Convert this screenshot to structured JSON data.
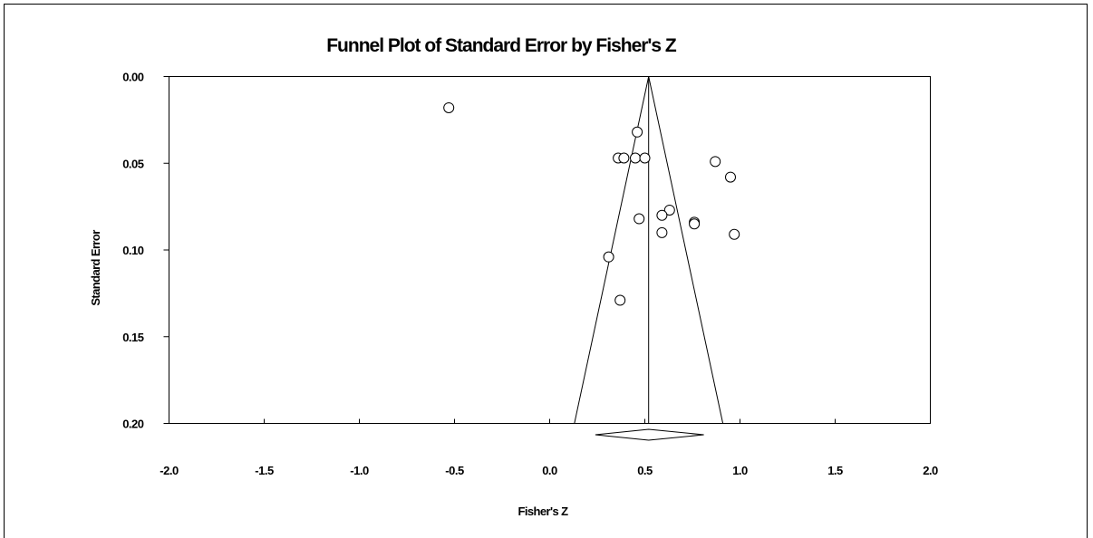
{
  "chart_data": {
    "type": "scatter",
    "title": "Funnel Plot of Standard Error by Fisher's Z",
    "xlabel": "Fisher's Z",
    "ylabel": "Standard Error",
    "xlim": [
      -2.0,
      2.0
    ],
    "ylim": [
      0.0,
      0.2
    ],
    "y_inverted": true,
    "x_ticks": [
      "-2.0",
      "-1.5",
      "-1.0",
      "-0.5",
      "0.0",
      "0.5",
      "1.0",
      "1.5",
      "2.0"
    ],
    "y_ticks": [
      "0.00",
      "0.05",
      "0.10",
      "0.15",
      "0.20"
    ],
    "combined_effect": 0.52,
    "combined_effect_ci": [
      0.24,
      0.81
    ],
    "funnel_bottom_se": 0.2,
    "funnel_bottom_x": [
      0.13,
      0.91
    ],
    "points": [
      {
        "x": -0.53,
        "y": 0.018
      },
      {
        "x": 0.46,
        "y": 0.032
      },
      {
        "x": 0.36,
        "y": 0.047
      },
      {
        "x": 0.39,
        "y": 0.047
      },
      {
        "x": 0.45,
        "y": 0.047
      },
      {
        "x": 0.5,
        "y": 0.047
      },
      {
        "x": 0.87,
        "y": 0.049
      },
      {
        "x": 0.95,
        "y": 0.058
      },
      {
        "x": 0.63,
        "y": 0.077
      },
      {
        "x": 0.59,
        "y": 0.08
      },
      {
        "x": 0.47,
        "y": 0.082
      },
      {
        "x": 0.76,
        "y": 0.084
      },
      {
        "x": 0.76,
        "y": 0.085
      },
      {
        "x": 0.59,
        "y": 0.09
      },
      {
        "x": 0.97,
        "y": 0.091
      },
      {
        "x": 0.31,
        "y": 0.104
      },
      {
        "x": 0.37,
        "y": 0.129
      }
    ]
  }
}
